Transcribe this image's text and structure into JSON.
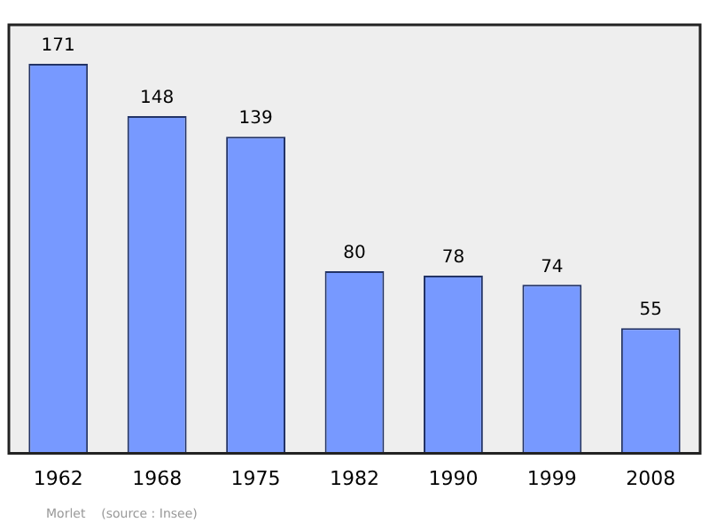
{
  "chart_data": {
    "type": "bar",
    "categories": [
      "1962",
      "1968",
      "1975",
      "1982",
      "1990",
      "1999",
      "2008"
    ],
    "values": [
      171,
      148,
      139,
      80,
      78,
      74,
      55
    ],
    "color": "#7799ff",
    "data_labels": true,
    "grid": false,
    "legend": false,
    "tick_labels": "x",
    "annotations": [
      "Morlet    (source : Insee)"
    ]
  }
}
